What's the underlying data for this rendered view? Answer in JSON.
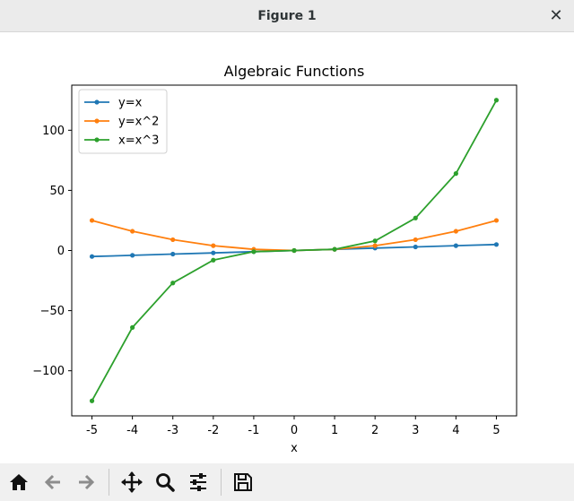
{
  "window": {
    "title": "Figure 1",
    "close_glyph": "✕"
  },
  "toolbar": {
    "items": [
      {
        "name": "home-icon"
      },
      {
        "name": "back-arrow-icon"
      },
      {
        "name": "forward-arrow-icon"
      },
      {
        "name": "pan-icon"
      },
      {
        "name": "zoom-icon"
      },
      {
        "name": "configure-subplots-icon"
      },
      {
        "name": "save-icon"
      }
    ]
  },
  "chart_data": {
    "type": "line",
    "title": "Algebraic Functions",
    "xlabel": "x",
    "ylabel": "",
    "x": [
      -5,
      -4,
      -3,
      -2,
      -1,
      0,
      1,
      2,
      3,
      4,
      5
    ],
    "xlim": [
      -5.5,
      5.5
    ],
    "ylim": [
      -137.5,
      137.5
    ],
    "x_ticks": [
      -5,
      -4,
      -3,
      -2,
      -1,
      0,
      1,
      2,
      3,
      4,
      5
    ],
    "y_ticks": [
      -100,
      -50,
      0,
      50,
      100
    ],
    "x_tick_labels": [
      "-5",
      "-4",
      "-3",
      "-2",
      "-1",
      "0",
      "1",
      "2",
      "3",
      "4",
      "5"
    ],
    "y_tick_labels": [
      "−100",
      "−50",
      "0",
      "50",
      "100"
    ],
    "grid": false,
    "legend_position": "upper-left",
    "series": [
      {
        "name": "y=x",
        "color": "#1f77b4",
        "values": [
          -5,
          -4,
          -3,
          -2,
          -1,
          0,
          1,
          2,
          3,
          4,
          5
        ]
      },
      {
        "name": "y=x^2",
        "color": "#ff7f0e",
        "values": [
          25,
          16,
          9,
          4,
          1,
          0,
          1,
          4,
          9,
          16,
          25
        ]
      },
      {
        "name": "x=x^3",
        "color": "#2ca02c",
        "values": [
          -125,
          -64,
          -27,
          -8,
          -1,
          0,
          1,
          8,
          27,
          64,
          125
        ]
      }
    ]
  }
}
